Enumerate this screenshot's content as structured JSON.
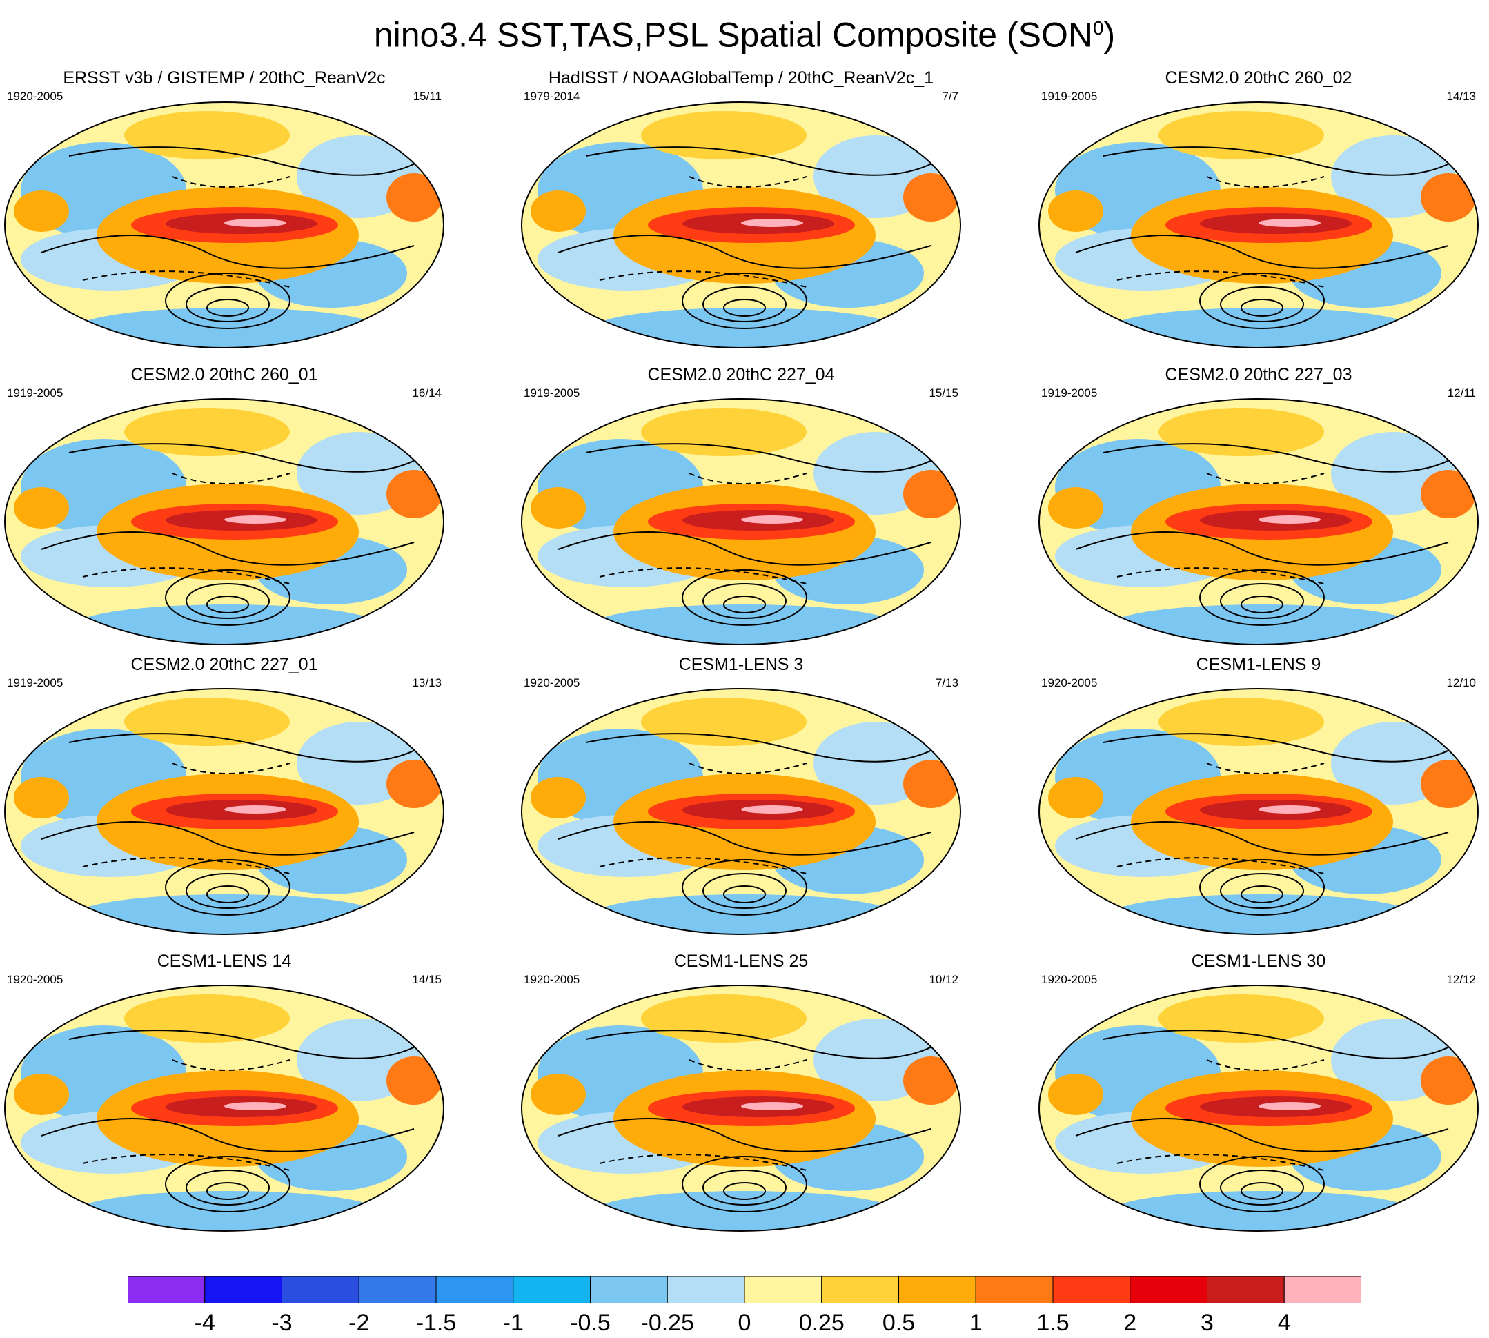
{
  "title": {
    "main": "nino3.4 SST,TAS,PSL Spatial Composite (SON",
    "superscript": "0",
    "close": ")"
  },
  "panels": [
    {
      "title": "ERSST v3b / GISTEMP / 20thC_ReanV2c",
      "period": "1920-2005",
      "count": "15/11"
    },
    {
      "title": "HadISST / NOAAGlobalTemp / 20thC_ReanV2c_1",
      "period": "1979-2014",
      "count": "7/7"
    },
    {
      "title": "CESM2.0 20thC 260_02",
      "period": "1919-2005",
      "count": "14/13"
    },
    {
      "title": "CESM2.0 20thC 260_01",
      "period": "1919-2005",
      "count": "16/14"
    },
    {
      "title": "CESM2.0 20thC 227_04",
      "period": "1919-2005",
      "count": "15/15"
    },
    {
      "title": "CESM2.0 20thC 227_03",
      "period": "1919-2005",
      "count": "12/11"
    },
    {
      "title": "CESM2.0 20thC 227_01",
      "period": "1919-2005",
      "count": "13/13"
    },
    {
      "title": "CESM1-LENS 3",
      "period": "1920-2005",
      "count": "7/13"
    },
    {
      "title": "CESM1-LENS 9",
      "period": "1920-2005",
      "count": "12/10"
    },
    {
      "title": "CESM1-LENS 14",
      "period": "1920-2005",
      "count": "14/15"
    },
    {
      "title": "CESM1-LENS 25",
      "period": "1920-2005",
      "count": "10/12"
    },
    {
      "title": "CESM1-LENS 30",
      "period": "1920-2005",
      "count": "12/12"
    }
  ],
  "colorbar": {
    "colors": [
      "#8c2cf2",
      "#1414f5",
      "#2a4fe0",
      "#3579ea",
      "#2d96f0",
      "#14b4f0",
      "#7cc6f2",
      "#b4def6",
      "#fff59e",
      "#ffd23a",
      "#ffab0a",
      "#ff7a14",
      "#ff3c14",
      "#e6000a",
      "#c81e1e",
      "#ffb2bc"
    ],
    "ticks": [
      "-4",
      "-3",
      "-2",
      "-1.5",
      "-1",
      "-0.5",
      "-0.25",
      "0",
      "0.25",
      "0.5",
      "1",
      "1.5",
      "2",
      "3",
      "4"
    ]
  }
}
